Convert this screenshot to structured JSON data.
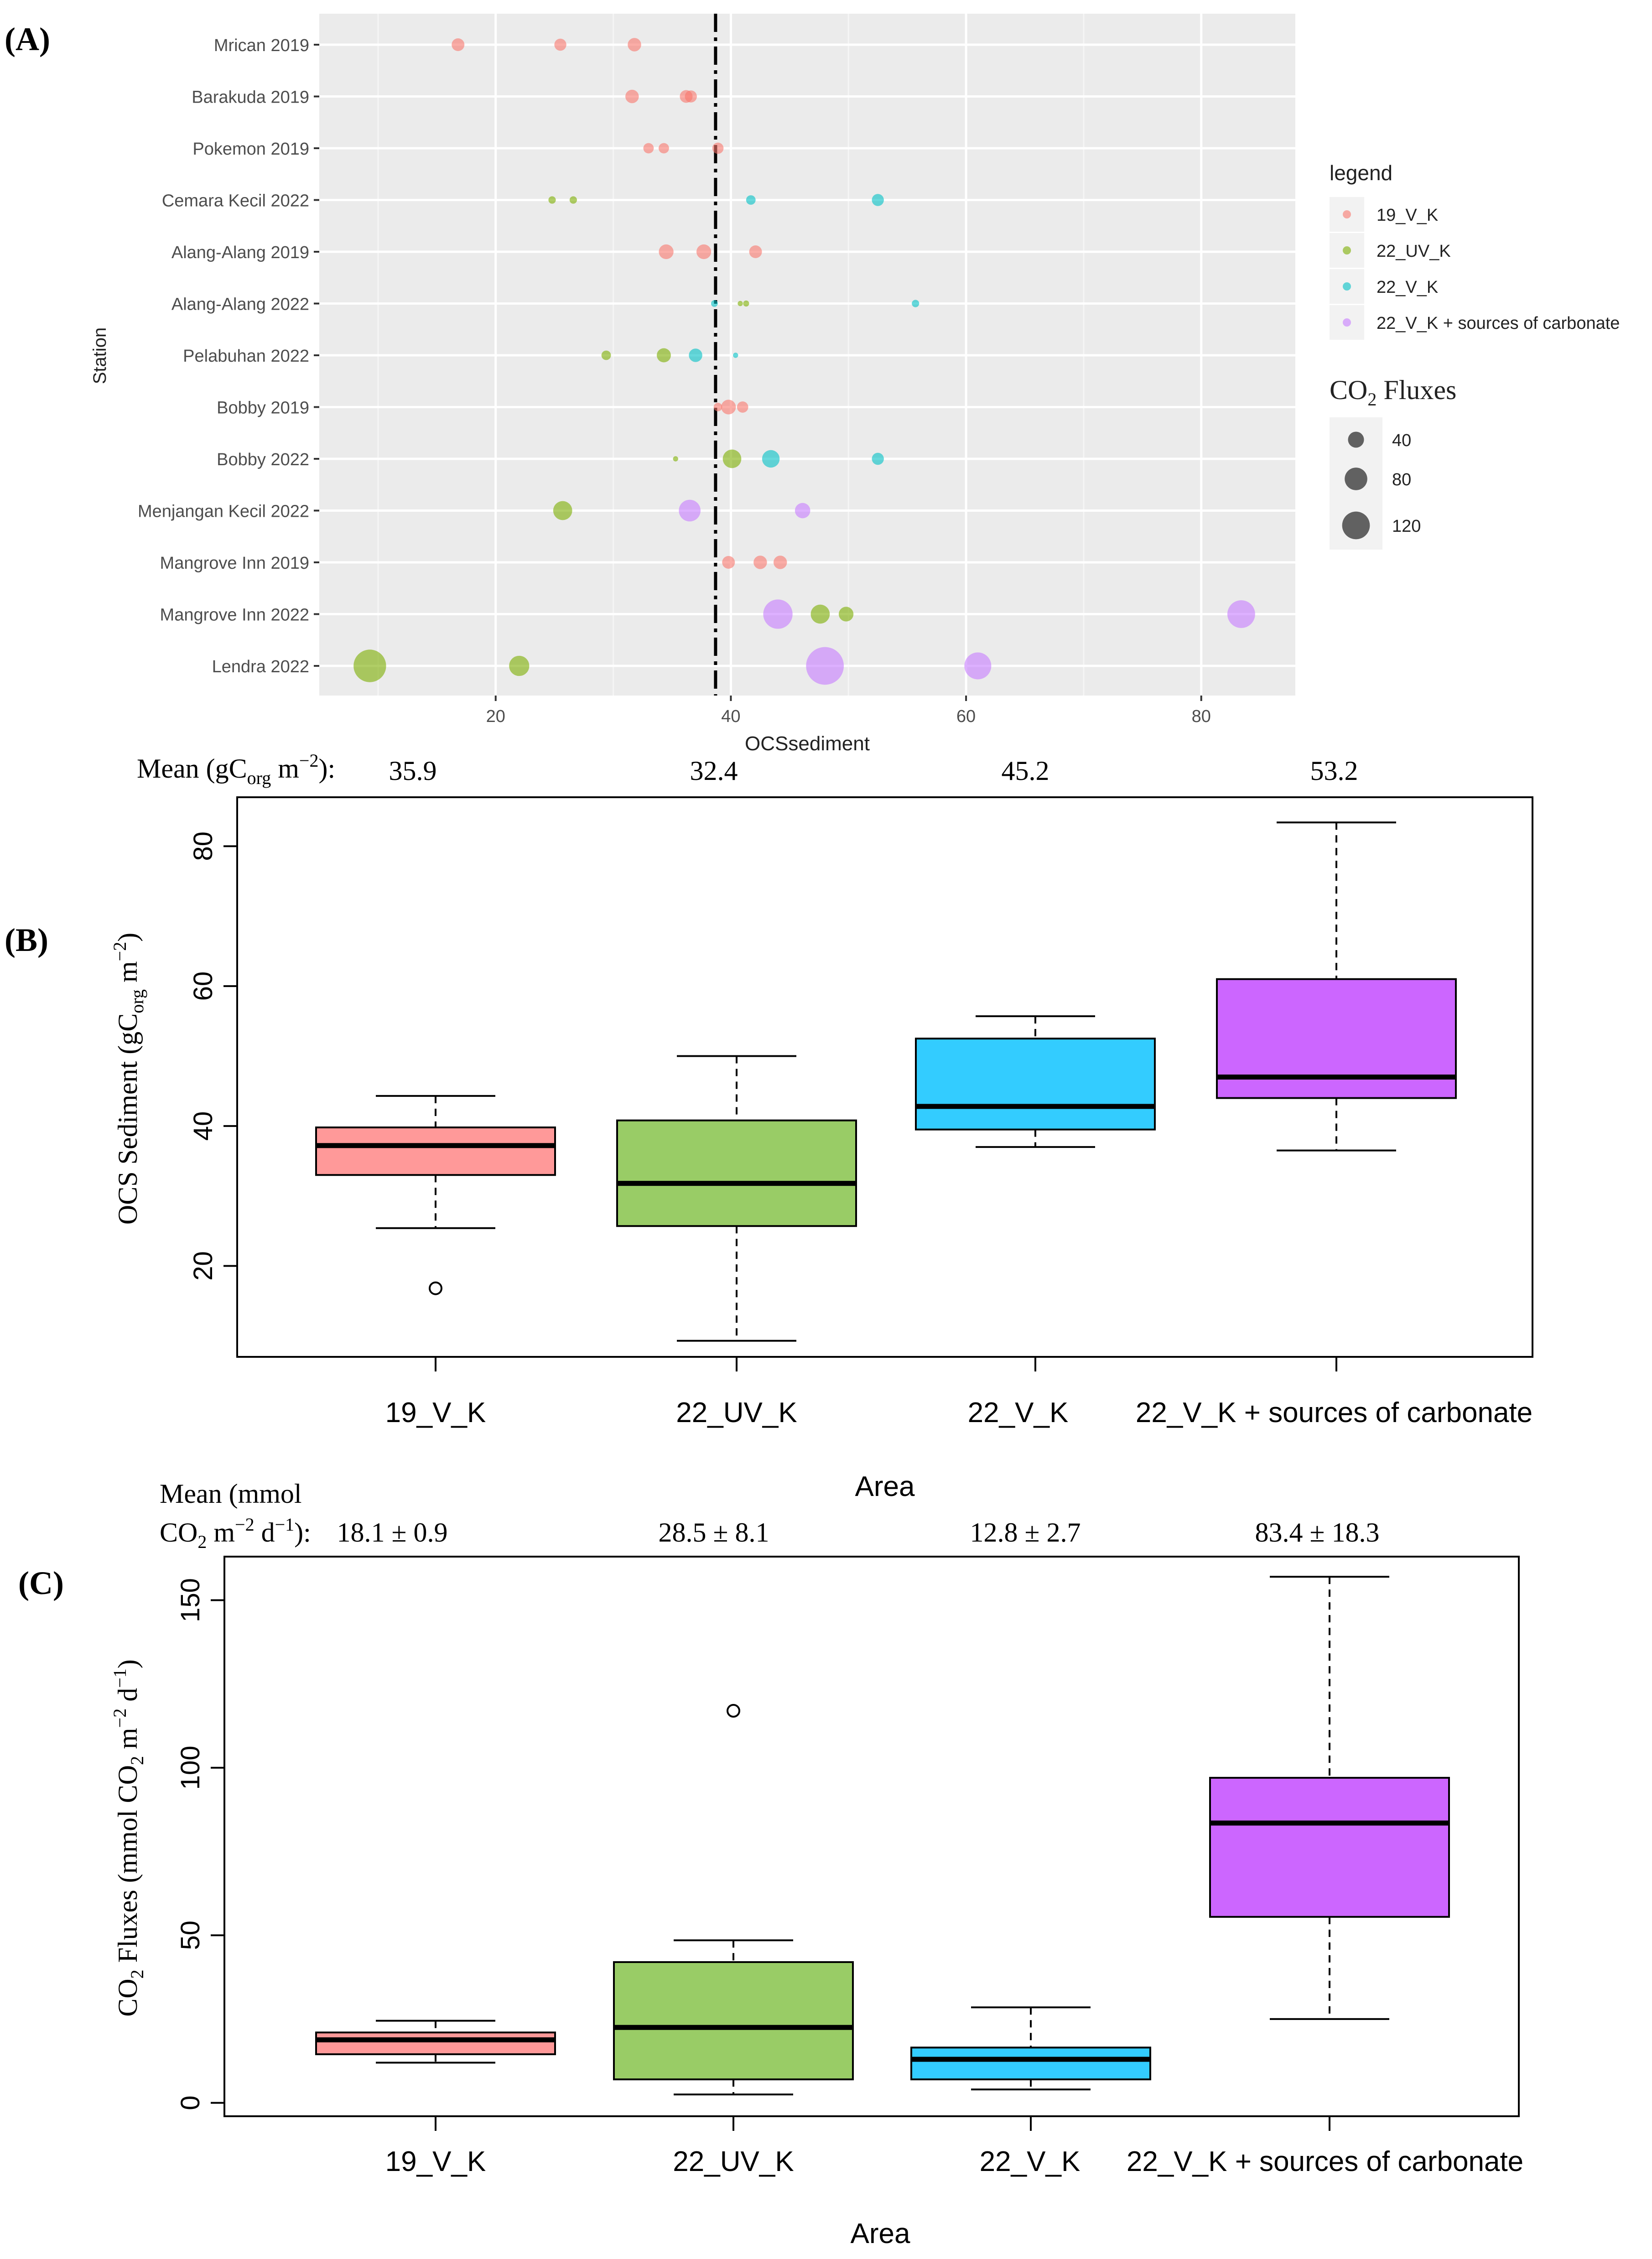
{
  "panel_labels": [
    "(A)",
    "(B)",
    "(C)"
  ],
  "colors": {
    "19_V_K": "#F8766D",
    "22_UV_K": "#7CAE00",
    "22_V_K": "#00BFC4",
    "22_V_K_carb": "#C77CFF",
    "box_19_V_K": "#FF9999",
    "box_22_UV_K": "#99CC66",
    "box_22_V_K": "#33CCFF",
    "box_22_V_K_carb": "#CC66FF",
    "panel_bg": "#EBEBEB"
  },
  "chart_data": [
    {
      "type": "scatter",
      "panel": "A",
      "xlabel": "OCSsediment",
      "ylabel": "Station",
      "xlim": [
        5,
        88
      ],
      "xticks": [
        20,
        40,
        60,
        80
      ],
      "grid": true,
      "reference_line_x": 38.7,
      "stations": [
        "Mrican 2019",
        "Barakuda 2019",
        "Pokemon 2019",
        "Cemara Kecil 2022",
        "Alang-Alang 2019",
        "Alang-Alang 2022",
        "Pelabuhan 2022",
        "Bobby 2019",
        "Bobby 2022",
        "Menjangan Kecil 2022",
        "Mangrove Inn 2019",
        "Mangrove Inn 2022",
        "Lendra 2022"
      ],
      "legend": {
        "title": "legend",
        "position": "right",
        "entries": [
          {
            "key": "19_V_K",
            "label": "19_V_K"
          },
          {
            "key": "22_UV_K",
            "label": "22_UV_K"
          },
          {
            "key": "22_V_K",
            "label": "22_V_K"
          },
          {
            "key": "22_V_K_carb",
            "label": "22_V_K + sources of carbonate"
          }
        ]
      },
      "size_legend": {
        "title_main": "CO",
        "title_sub": "2",
        "title_rest": " Fluxes",
        "values": [
          40,
          80,
          120
        ],
        "labels": [
          "40",
          "80",
          "120"
        ]
      },
      "points": [
        {
          "station": 0,
          "x": 16.8,
          "size": 18,
          "group": "19_V_K"
        },
        {
          "station": 0,
          "x": 25.5,
          "size": 16,
          "group": "19_V_K"
        },
        {
          "station": 0,
          "x": 31.8,
          "size": 20,
          "group": "19_V_K"
        },
        {
          "station": 1,
          "x": 31.6,
          "size": 20,
          "group": "19_V_K"
        },
        {
          "station": 1,
          "x": 36.2,
          "size": 18,
          "group": "19_V_K"
        },
        {
          "station": 1,
          "x": 36.6,
          "size": 16,
          "group": "19_V_K"
        },
        {
          "station": 2,
          "x": 33.0,
          "size": 12,
          "group": "19_V_K"
        },
        {
          "station": 2,
          "x": 34.3,
          "size": 12,
          "group": "19_V_K"
        },
        {
          "station": 2,
          "x": 38.9,
          "size": 14,
          "group": "19_V_K"
        },
        {
          "station": 3,
          "x": 24.8,
          "size": 6,
          "group": "22_UV_K"
        },
        {
          "station": 3,
          "x": 26.6,
          "size": 6,
          "group": "22_UV_K"
        },
        {
          "station": 3,
          "x": 41.7,
          "size": 10,
          "group": "22_V_K"
        },
        {
          "station": 3,
          "x": 52.5,
          "size": 16,
          "group": "22_V_K"
        },
        {
          "station": 4,
          "x": 34.5,
          "size": 24,
          "group": "19_V_K"
        },
        {
          "station": 4,
          "x": 37.7,
          "size": 24,
          "group": "19_V_K"
        },
        {
          "station": 4,
          "x": 42.1,
          "size": 18,
          "group": "19_V_K"
        },
        {
          "station": 5,
          "x": 38.6,
          "size": 5,
          "group": "22_V_K"
        },
        {
          "station": 5,
          "x": 40.8,
          "size": 3,
          "group": "22_UV_K"
        },
        {
          "station": 5,
          "x": 41.3,
          "size": 4,
          "group": "22_UV_K"
        },
        {
          "station": 5,
          "x": 55.7,
          "size": 6,
          "group": "22_V_K"
        },
        {
          "station": 6,
          "x": 29.4,
          "size": 10,
          "group": "22_UV_K"
        },
        {
          "station": 6,
          "x": 34.3,
          "size": 22,
          "group": "22_UV_K"
        },
        {
          "station": 6,
          "x": 37.0,
          "size": 20,
          "group": "22_V_K"
        },
        {
          "station": 6,
          "x": 40.4,
          "size": 3,
          "group": "22_V_K"
        },
        {
          "station": 7,
          "x": 38.9,
          "size": 8,
          "group": "19_V_K"
        },
        {
          "station": 7,
          "x": 39.8,
          "size": 24,
          "group": "19_V_K"
        },
        {
          "station": 7,
          "x": 41.0,
          "size": 14,
          "group": "19_V_K"
        },
        {
          "station": 8,
          "x": 35.3,
          "size": 3,
          "group": "22_UV_K"
        },
        {
          "station": 8,
          "x": 40.1,
          "size": 38,
          "group": "22_UV_K"
        },
        {
          "station": 8,
          "x": 43.4,
          "size": 34,
          "group": "22_V_K"
        },
        {
          "station": 8,
          "x": 52.5,
          "size": 16,
          "group": "22_V_K"
        },
        {
          "station": 9,
          "x": 25.7,
          "size": 40,
          "group": "22_UV_K"
        },
        {
          "station": 9,
          "x": 36.5,
          "size": 52,
          "group": "22_V_K_carb"
        },
        {
          "station": 9,
          "x": 46.1,
          "size": 26,
          "group": "22_V_K_carb"
        },
        {
          "station": 10,
          "x": 39.8,
          "size": 18,
          "group": "19_V_K"
        },
        {
          "station": 10,
          "x": 42.5,
          "size": 20,
          "group": "19_V_K"
        },
        {
          "station": 10,
          "x": 44.2,
          "size": 20,
          "group": "19_V_K"
        },
        {
          "station": 11,
          "x": 44.0,
          "size": 95,
          "group": "22_V_K_carb"
        },
        {
          "station": 11,
          "x": 47.6,
          "size": 40,
          "group": "22_UV_K"
        },
        {
          "station": 11,
          "x": 49.8,
          "size": 24,
          "group": "22_UV_K"
        },
        {
          "station": 11,
          "x": 83.4,
          "size": 85,
          "group": "22_V_K_carb"
        },
        {
          "station": 12,
          "x": 9.3,
          "size": 117,
          "group": "22_UV_K"
        },
        {
          "station": 12,
          "x": 22.0,
          "size": 45,
          "group": "22_UV_K"
        },
        {
          "station": 12,
          "x": 48.0,
          "size": 157,
          "group": "22_V_K_carb"
        },
        {
          "station": 12,
          "x": 61.0,
          "size": 80,
          "group": "22_V_K_carb"
        }
      ]
    },
    {
      "type": "box",
      "panel": "B",
      "mean_label_a": "Mean (gC",
      "mean_label_sub": "org",
      "mean_label_b": " m",
      "mean_label_sup": "−2",
      "mean_label_c": "):",
      "means": [
        "35.9",
        "32.4",
        "45.2",
        "53.2"
      ],
      "categories": [
        "19_V_K",
        "22_UV_K",
        "22_V_K",
        "22_V_K + sources of carbonate"
      ],
      "xlabel": "Area",
      "ylabel_a": "OCS Sediment (gC",
      "ylabel_sub": "org",
      "ylabel_b": " m",
      "ylabel_sup": "−2",
      "ylabel_c": ")",
      "ylim": [
        7,
        87
      ],
      "yticks": [
        20,
        40,
        60,
        80
      ],
      "boxes": [
        {
          "min": 25.4,
          "q1": 33.0,
          "median": 37.2,
          "q3": 39.8,
          "max": 44.3,
          "outliers": [
            16.8
          ],
          "color_key": "box_19_V_K"
        },
        {
          "min": 9.3,
          "q1": 25.7,
          "median": 31.8,
          "q3": 40.8,
          "max": 50.0,
          "outliers": [],
          "color_key": "box_22_UV_K"
        },
        {
          "min": 37.0,
          "q1": 39.5,
          "median": 42.8,
          "q3": 52.5,
          "max": 55.7,
          "outliers": [],
          "color_key": "box_22_V_K"
        },
        {
          "min": 36.5,
          "q1": 44.0,
          "median": 47.0,
          "q3": 61.0,
          "max": 83.4,
          "outliers": [],
          "color_key": "box_22_V_K_carb"
        }
      ]
    },
    {
      "type": "box",
      "panel": "C",
      "mean_label_line1": "Mean (mmol",
      "mean_label_a": "CO",
      "mean_label_sub": "2",
      "mean_label_b": " m",
      "mean_label_sup": "−2",
      "mean_label_c": " d",
      "mean_label_sup2": "−1",
      "mean_label_d": "):",
      "means": [
        "18.1 ± 0.9",
        "28.5 ± 8.1",
        "12.8 ± 2.7",
        "83.4 ± 18.3"
      ],
      "categories": [
        "19_V_K",
        "22_UV_K",
        "22_V_K",
        "22_V_K + sources of carbonate"
      ],
      "xlabel": "Area",
      "ylabel_a": "CO",
      "ylabel_sub": "2",
      "ylabel_b": " Fluxes (mmol CO",
      "ylabel_sub2": "2",
      "ylabel_c": " m",
      "ylabel_sup": "−2",
      "ylabel_d": " d",
      "ylabel_sup2": "−1",
      "ylabel_e": ")",
      "ylim": [
        -4,
        163
      ],
      "yticks": [
        0,
        50,
        100,
        150
      ],
      "boxes": [
        {
          "min": 12.0,
          "q1": 14.5,
          "median": 18.8,
          "q3": 21.0,
          "max": 24.5,
          "outliers": [],
          "color_key": "box_19_V_K"
        },
        {
          "min": 2.5,
          "q1": 7.0,
          "median": 22.5,
          "q3": 42.0,
          "max": 48.5,
          "outliers": [
            117.0
          ],
          "color_key": "box_22_UV_K"
        },
        {
          "min": 4.0,
          "q1": 7.0,
          "median": 13.0,
          "q3": 16.5,
          "max": 28.5,
          "outliers": [],
          "color_key": "box_22_V_K"
        },
        {
          "min": 25.0,
          "q1": 55.5,
          "median": 83.5,
          "q3": 97.0,
          "max": 157.0,
          "outliers": [],
          "color_key": "box_22_V_K_carb"
        }
      ]
    }
  ]
}
